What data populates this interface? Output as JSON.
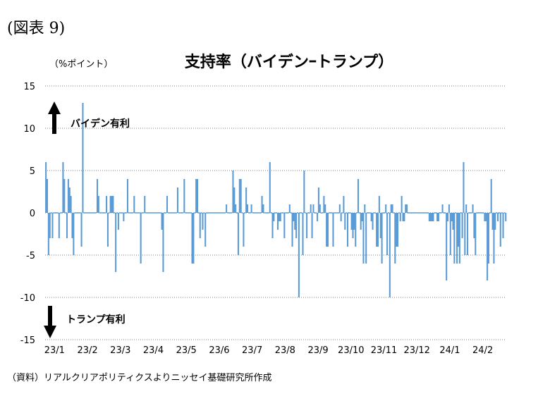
{
  "figure_label": "(図表 9)",
  "source_note": "（資料）リアルクリアポリティクスよりニッセイ基礎研究所作成",
  "chart_data": {
    "type": "bar",
    "title": "支持率（バイデンｰトランプ）",
    "ylabel": "（%ポイント）",
    "xlabel": "",
    "ylim": [
      -15,
      15
    ],
    "yticks": [
      15,
      10,
      5,
      0,
      -5,
      -10,
      -15
    ],
    "grid": true,
    "bar_color": "#5B9BD5",
    "x_tick_labels": [
      "23/1",
      "23/2",
      "23/3",
      "23/4",
      "23/5",
      "23/6",
      "23/7",
      "23/8",
      "23/9",
      "23/10",
      "23/11",
      "23/12",
      "24/1",
      "24/2"
    ],
    "annotations": [
      {
        "text": "バイデン有利",
        "direction": "up"
      },
      {
        "text": "トランプ有利",
        "direction": "down"
      }
    ],
    "values": [
      6,
      4,
      -5,
      -3,
      0,
      -3,
      0,
      0,
      0,
      0,
      -3,
      0,
      0,
      6,
      4,
      0,
      -3,
      4,
      3,
      2,
      -3,
      -5,
      0,
      0,
      0,
      0,
      0,
      -4,
      13,
      0,
      0,
      0,
      0,
      0,
      0,
      0,
      0,
      0,
      0,
      4,
      2,
      0,
      0,
      0,
      0,
      0,
      2,
      -4,
      0,
      2,
      2,
      2,
      0,
      -7,
      0,
      -2,
      0,
      0,
      0,
      -1,
      0,
      0,
      4,
      0,
      0,
      0,
      0,
      2,
      0,
      0,
      0,
      0,
      -6,
      0,
      0,
      2,
      0,
      0,
      0,
      0,
      0,
      0,
      0,
      0,
      0,
      0,
      0,
      0,
      -2,
      -7,
      0,
      0,
      2,
      0,
      0,
      0,
      0,
      0,
      0,
      0,
      3,
      0,
      0,
      0,
      0,
      4,
      0,
      0,
      0,
      0,
      0,
      -6,
      -6,
      0,
      4,
      4,
      0,
      -3,
      0,
      -2,
      0,
      -4,
      0,
      0,
      0,
      0,
      0,
      0,
      0,
      0,
      0,
      0,
      0,
      0,
      0,
      0,
      0,
      1,
      0,
      0,
      0,
      0,
      5,
      3,
      1,
      0,
      -5,
      4,
      4,
      0,
      -4,
      0,
      3,
      1,
      0,
      0,
      1,
      0,
      0,
      0,
      0,
      0,
      0,
      0,
      2,
      1,
      0,
      0,
      0,
      0,
      6,
      0,
      -3,
      -1,
      0,
      0,
      -2,
      -1,
      -1,
      0,
      0,
      -3,
      0,
      0,
      0,
      1,
      0,
      -4,
      -1,
      -2,
      -3,
      0,
      -10,
      0,
      0,
      -5,
      5,
      0,
      -3,
      0,
      0,
      1,
      -3,
      1,
      0,
      0,
      -1,
      3,
      1,
      0,
      0,
      2,
      1,
      -4,
      -4,
      0,
      0,
      0,
      -4,
      0,
      0,
      0,
      0,
      1,
      -1,
      0,
      2,
      -2,
      0,
      -4,
      0,
      0,
      -2,
      -3,
      -2,
      -4,
      0,
      4,
      0,
      -2,
      -1,
      -6,
      1,
      -6,
      0,
      0,
      0,
      -1,
      -2,
      0,
      0,
      -4,
      -4,
      2,
      -3,
      -6,
      0,
      0,
      1,
      -5,
      0,
      -10,
      1,
      1,
      0,
      -6,
      -4,
      -4,
      0,
      -1,
      2,
      -1,
      -1,
      1,
      1,
      0,
      0,
      0,
      0,
      0,
      0,
      0,
      0,
      0,
      0,
      0,
      0,
      0,
      0,
      0,
      0,
      -1,
      -1,
      -1,
      -1,
      0,
      0,
      -1,
      -1,
      0,
      0,
      1,
      0,
      0,
      -8,
      -1,
      1,
      -5,
      -1,
      -2,
      -6,
      0,
      -6,
      -4,
      -6,
      0,
      -3,
      6,
      -5,
      1,
      -5,
      0,
      0,
      0,
      1,
      -3,
      -5,
      0,
      0,
      0,
      0,
      0,
      0,
      -1,
      -1,
      -8,
      -6,
      0,
      4,
      -2,
      -6,
      -2,
      0,
      -1,
      0,
      -4,
      0,
      -3,
      0,
      -1
    ]
  }
}
